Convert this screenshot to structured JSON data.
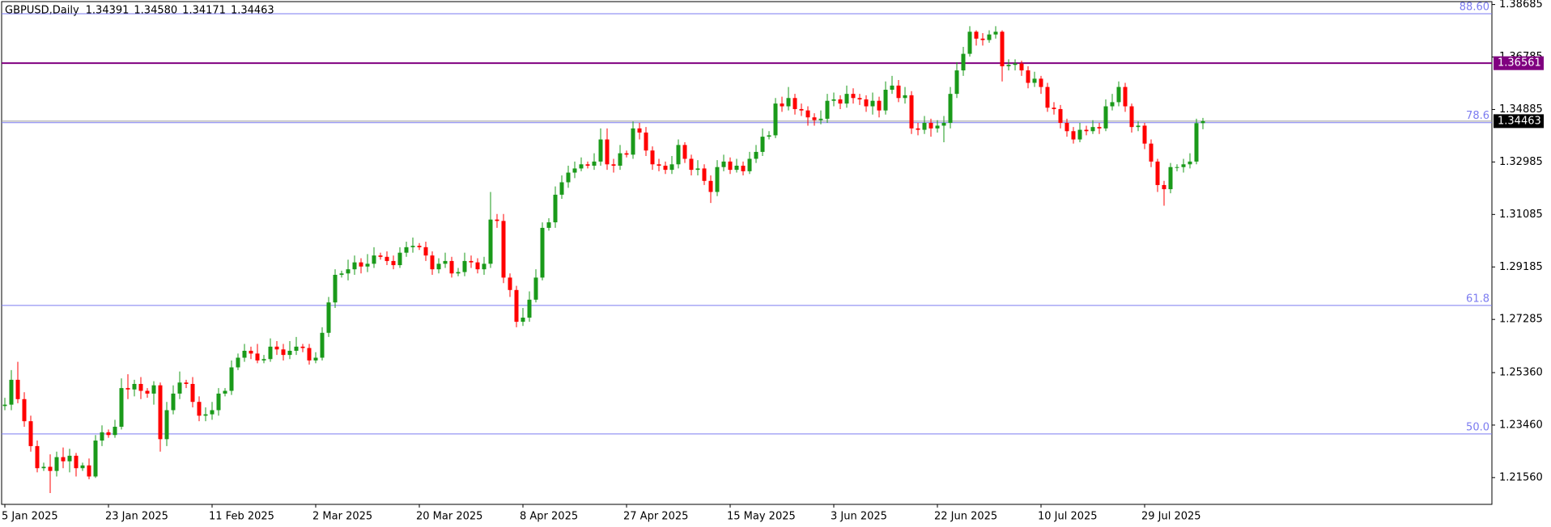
{
  "chart_data": {
    "type": "candlestick",
    "title": "GBPUSD,Daily",
    "header_values": [
      "1.34391",
      "1.34580",
      "1.34171",
      "1.34463"
    ],
    "up_color": "#1a9a1a",
    "down_color": "#ff0000",
    "ylim": [
      1.2059,
      1.3879
    ],
    "yticks": [
      1.38685,
      1.36785,
      1.34885,
      1.32985,
      1.31085,
      1.29185,
      1.27285,
      {
        "value": 1.2536,
        "label": "1.25360"
      },
      {
        "value": 1.2346,
        "label": "1.23460"
      },
      {
        "value": 1.2156,
        "label": "1.21560"
      }
    ],
    "levels": [
      {
        "label": "88.60",
        "value": 1.3835
      },
      {
        "label": "78.6",
        "value": 1.3441
      },
      {
        "label": "61.8",
        "value": 1.2779
      },
      {
        "label": "50.0",
        "value": 1.2314
      }
    ],
    "level_color": "#7b7bf0",
    "price_lines": [
      {
        "value": 1.36561,
        "label": "1.36561",
        "color": "#800080"
      },
      {
        "value": 1.34463,
        "label": "1.34463",
        "color": "#000000"
      }
    ],
    "categories": [
      "5 Jan 2025",
      null,
      null,
      null,
      null,
      null,
      null,
      null,
      null,
      null,
      null,
      null,
      null,
      null,
      null,
      null,
      "23 Jan 2025",
      null,
      null,
      null,
      null,
      null,
      null,
      null,
      null,
      null,
      null,
      null,
      null,
      null,
      null,
      null,
      "11 Feb 2025",
      null,
      null,
      null,
      null,
      null,
      null,
      null,
      null,
      null,
      null,
      null,
      null,
      null,
      null,
      null,
      "2 Mar 2025",
      null,
      null,
      null,
      null,
      null,
      null,
      null,
      null,
      null,
      null,
      null,
      null,
      null,
      null,
      null,
      "20 Mar 2025",
      null,
      null,
      null,
      null,
      null,
      null,
      null,
      null,
      null,
      null,
      null,
      null,
      null,
      null,
      null,
      "8 Apr 2025",
      null,
      null,
      null,
      null,
      null,
      null,
      null,
      null,
      null,
      null,
      null,
      null,
      null,
      null,
      null,
      "27 Apr 2025",
      null,
      null,
      null,
      null,
      null,
      null,
      null,
      null,
      null,
      null,
      null,
      null,
      null,
      null,
      null,
      "15 May 2025",
      null,
      null,
      null,
      null,
      null,
      null,
      null,
      null,
      null,
      null,
      null,
      null,
      null,
      null,
      null,
      "3 Jun 2025",
      null,
      null,
      null,
      null,
      null,
      null,
      null,
      null,
      null,
      null,
      null,
      null,
      null,
      null,
      null,
      "22 Jun 2025",
      null,
      null,
      null,
      null,
      null,
      null,
      null,
      null,
      null,
      null,
      null,
      null,
      null,
      null,
      null,
      "10 Jul 2025",
      null,
      null,
      null,
      null,
      null,
      null,
      null,
      null,
      null,
      null,
      null,
      null,
      null,
      null,
      null,
      "29 Jul 2025",
      null,
      null,
      null,
      null,
      null,
      null,
      null,
      null,
      null
    ],
    "candles": [
      [
        1.2415,
        1.2445,
        1.24,
        1.242
      ],
      [
        1.242,
        1.2545,
        1.24,
        1.251
      ],
      [
        1.251,
        1.2575,
        1.2425,
        1.244
      ],
      [
        1.244,
        1.2465,
        1.234,
        1.236
      ],
      [
        1.236,
        1.238,
        1.225,
        1.227
      ],
      [
        1.227,
        1.229,
        1.2175,
        1.219
      ],
      [
        1.219,
        1.221,
        1.218,
        1.2195
      ],
      [
        1.2195,
        1.224,
        1.21,
        1.218
      ],
      [
        1.218,
        1.225,
        1.216,
        1.223
      ],
      [
        1.223,
        1.2265,
        1.219,
        1.2215
      ],
      [
        1.2215,
        1.226,
        1.2175,
        1.2235
      ],
      [
        1.2235,
        1.2245,
        1.216,
        1.219
      ],
      [
        1.219,
        1.221,
        1.218,
        1.22
      ],
      [
        1.22,
        1.2225,
        1.215,
        1.216
      ],
      [
        1.216,
        1.231,
        1.2155,
        1.229
      ],
      [
        1.229,
        1.2345,
        1.227,
        1.232
      ],
      [
        1.232,
        1.233,
        1.23,
        1.231
      ],
      [
        1.231,
        1.2365,
        1.23,
        1.234
      ],
      [
        1.234,
        1.2515,
        1.233,
        1.248
      ],
      [
        1.248,
        1.253,
        1.244,
        1.2475
      ],
      [
        1.2475,
        1.251,
        1.245,
        1.2495
      ],
      [
        1.2495,
        1.252,
        1.244,
        1.247
      ],
      [
        1.247,
        1.248,
        1.2445,
        1.246
      ],
      [
        1.246,
        1.2505,
        1.242,
        1.249
      ],
      [
        1.249,
        1.25,
        1.225,
        1.2295
      ],
      [
        1.2295,
        1.243,
        1.227,
        1.24
      ],
      [
        1.24,
        1.249,
        1.2385,
        1.246
      ],
      [
        1.246,
        1.254,
        1.244,
        1.25
      ],
      [
        1.25,
        1.251,
        1.248,
        1.2495
      ],
      [
        1.2495,
        1.252,
        1.241,
        1.243
      ],
      [
        1.243,
        1.245,
        1.236,
        1.238
      ],
      [
        1.238,
        1.241,
        1.236,
        1.2385
      ],
      [
        1.2385,
        1.243,
        1.2365,
        1.24
      ],
      [
        1.24,
        1.248,
        1.238,
        1.246
      ],
      [
        1.246,
        1.248,
        1.245,
        1.247
      ],
      [
        1.247,
        1.258,
        1.2455,
        1.2555
      ],
      [
        1.2555,
        1.2605,
        1.2545,
        1.259
      ],
      [
        1.259,
        1.264,
        1.2575,
        1.2615
      ],
      [
        1.2615,
        1.263,
        1.2585,
        1.2605
      ],
      [
        1.2605,
        1.264,
        1.257,
        1.258
      ],
      [
        1.258,
        1.26,
        1.257,
        1.2585
      ],
      [
        1.2585,
        1.266,
        1.2575,
        1.263
      ],
      [
        1.263,
        1.265,
        1.26,
        1.262
      ],
      [
        1.262,
        1.264,
        1.258,
        1.26
      ],
      [
        1.26,
        1.265,
        1.2585,
        1.2615
      ],
      [
        1.2615,
        1.2665,
        1.26,
        1.263
      ],
      [
        1.263,
        1.264,
        1.261,
        1.2625
      ],
      [
        1.2625,
        1.264,
        1.2565,
        1.258
      ],
      [
        1.258,
        1.261,
        1.257,
        1.259
      ],
      [
        1.259,
        1.27,
        1.258,
        1.268
      ],
      [
        1.268,
        1.281,
        1.2665,
        1.279
      ],
      [
        1.279,
        1.291,
        1.277,
        1.289
      ],
      [
        1.289,
        1.2905,
        1.288,
        1.2895
      ],
      [
        1.2895,
        1.2945,
        1.287,
        1.291
      ],
      [
        1.291,
        1.296,
        1.289,
        1.2935
      ],
      [
        1.2935,
        1.295,
        1.2895,
        1.292
      ],
      [
        1.292,
        1.2965,
        1.29,
        1.293
      ],
      [
        1.293,
        1.299,
        1.2915,
        1.296
      ],
      [
        1.296,
        1.297,
        1.2945,
        1.2955
      ],
      [
        1.2955,
        1.2975,
        1.2925,
        1.294
      ],
      [
        1.294,
        1.296,
        1.291,
        1.2925
      ],
      [
        1.2925,
        1.299,
        1.2915,
        1.297
      ],
      [
        1.297,
        1.301,
        1.2955,
        1.299
      ],
      [
        1.299,
        1.3025,
        1.297,
        1.2995
      ],
      [
        1.2995,
        1.3005,
        1.298,
        1.299
      ],
      [
        1.299,
        1.301,
        1.294,
        1.296
      ],
      [
        1.296,
        1.2975,
        1.289,
        1.291
      ],
      [
        1.291,
        1.295,
        1.2895,
        1.293
      ],
      [
        1.293,
        1.297,
        1.2915,
        1.294
      ],
      [
        1.294,
        1.2955,
        1.288,
        1.2895
      ],
      [
        1.2895,
        1.2915,
        1.2885,
        1.29
      ],
      [
        1.29,
        1.297,
        1.2885,
        1.294
      ],
      [
        1.294,
        1.296,
        1.2915,
        1.2935
      ],
      [
        1.2935,
        1.295,
        1.2895,
        1.291
      ],
      [
        1.291,
        1.2955,
        1.289,
        1.293
      ],
      [
        1.293,
        1.319,
        1.2915,
        1.309
      ],
      [
        1.309,
        1.311,
        1.306,
        1.3085
      ],
      [
        1.3085,
        1.311,
        1.286,
        1.288
      ],
      [
        1.288,
        1.2895,
        1.281,
        1.2835
      ],
      [
        1.2835,
        1.285,
        1.27,
        1.272
      ],
      [
        1.272,
        1.277,
        1.2705,
        1.2735
      ],
      [
        1.2735,
        1.283,
        1.272,
        1.28
      ],
      [
        1.28,
        1.291,
        1.279,
        1.288
      ],
      [
        1.288,
        1.308,
        1.287,
        1.306
      ],
      [
        1.306,
        1.3095,
        1.305,
        1.308
      ],
      [
        1.308,
        1.321,
        1.306,
        1.318
      ],
      [
        1.318,
        1.325,
        1.3165,
        1.3225
      ],
      [
        1.3225,
        1.3285,
        1.3205,
        1.326
      ],
      [
        1.326,
        1.33,
        1.324,
        1.3275
      ],
      [
        1.3275,
        1.3315,
        1.3265,
        1.329
      ],
      [
        1.329,
        1.33,
        1.3275,
        1.3285
      ],
      [
        1.3285,
        1.333,
        1.327,
        1.33
      ],
      [
        1.33,
        1.342,
        1.3285,
        1.338
      ],
      [
        1.338,
        1.342,
        1.327,
        1.329
      ],
      [
        1.329,
        1.331,
        1.326,
        1.3285
      ],
      [
        1.3285,
        1.336,
        1.327,
        1.333
      ],
      [
        1.333,
        1.334,
        1.3315,
        1.3325
      ],
      [
        1.3325,
        1.3445,
        1.331,
        1.342
      ],
      [
        1.342,
        1.344,
        1.338,
        1.3405
      ],
      [
        1.3405,
        1.3425,
        1.332,
        1.334
      ],
      [
        1.334,
        1.3355,
        1.327,
        1.329
      ],
      [
        1.329,
        1.331,
        1.3265,
        1.3285
      ],
      [
        1.3285,
        1.33,
        1.3255,
        1.327
      ],
      [
        1.327,
        1.332,
        1.3255,
        1.329
      ],
      [
        1.329,
        1.338,
        1.3275,
        1.336
      ],
      [
        1.336,
        1.337,
        1.3295,
        1.331
      ],
      [
        1.331,
        1.3325,
        1.325,
        1.327
      ],
      [
        1.327,
        1.3305,
        1.325,
        1.3275
      ],
      [
        1.3275,
        1.329,
        1.3215,
        1.323
      ],
      [
        1.323,
        1.325,
        1.315,
        1.319
      ],
      [
        1.319,
        1.3305,
        1.3175,
        1.328
      ],
      [
        1.328,
        1.3325,
        1.3265,
        1.33
      ],
      [
        1.33,
        1.3315,
        1.3255,
        1.327
      ],
      [
        1.327,
        1.331,
        1.326,
        1.3285
      ],
      [
        1.3285,
        1.33,
        1.325,
        1.3265
      ],
      [
        1.3265,
        1.3335,
        1.3255,
        1.331
      ],
      [
        1.331,
        1.336,
        1.3295,
        1.3335
      ],
      [
        1.3335,
        1.342,
        1.332,
        1.339
      ],
      [
        1.339,
        1.341,
        1.338,
        1.3395
      ],
      [
        1.3395,
        1.353,
        1.3385,
        1.351
      ],
      [
        1.351,
        1.3535,
        1.348,
        1.35
      ],
      [
        1.35,
        1.357,
        1.3485,
        1.353
      ],
      [
        1.353,
        1.3545,
        1.347,
        1.349
      ],
      [
        1.349,
        1.351,
        1.3465,
        1.3485
      ],
      [
        1.3485,
        1.35,
        1.343,
        1.346
      ],
      [
        1.346,
        1.3475,
        1.343,
        1.345
      ],
      [
        1.345,
        1.3485,
        1.3435,
        1.3455
      ],
      [
        1.3455,
        1.3545,
        1.344,
        1.352
      ],
      [
        1.352,
        1.355,
        1.35,
        1.3525
      ],
      [
        1.3525,
        1.354,
        1.349,
        1.351
      ],
      [
        1.351,
        1.3575,
        1.3495,
        1.3545
      ],
      [
        1.3545,
        1.3565,
        1.351,
        1.353
      ],
      [
        1.353,
        1.3545,
        1.3505,
        1.3525
      ],
      [
        1.3525,
        1.354,
        1.348,
        1.35
      ],
      [
        1.35,
        1.355,
        1.347,
        1.352
      ],
      [
        1.352,
        1.3535,
        1.346,
        1.3485
      ],
      [
        1.3485,
        1.359,
        1.347,
        1.356
      ],
      [
        1.356,
        1.361,
        1.3545,
        1.3575
      ],
      [
        1.3575,
        1.3595,
        1.3515,
        1.353
      ],
      [
        1.353,
        1.357,
        1.351,
        1.354
      ],
      [
        1.354,
        1.3555,
        1.34,
        1.342
      ],
      [
        1.342,
        1.344,
        1.3395,
        1.3415
      ],
      [
        1.3415,
        1.3465,
        1.34,
        1.344
      ],
      [
        1.344,
        1.3455,
        1.339,
        1.342
      ],
      [
        1.342,
        1.345,
        1.3405,
        1.343
      ],
      [
        1.343,
        1.3465,
        1.337,
        1.344
      ],
      [
        1.344,
        1.357,
        1.342,
        1.3545
      ],
      [
        1.3545,
        1.366,
        1.353,
        1.363
      ],
      [
        1.363,
        1.3715,
        1.361,
        1.369
      ],
      [
        1.369,
        1.379,
        1.368,
        1.377
      ],
      [
        1.377,
        1.3775,
        1.372,
        1.3745
      ],
      [
        1.3745,
        1.3765,
        1.372,
        1.374
      ],
      [
        1.374,
        1.3775,
        1.373,
        1.376
      ],
      [
        1.376,
        1.379,
        1.3745,
        1.377
      ],
      [
        1.377,
        1.3775,
        1.359,
        1.3645
      ],
      [
        1.3645,
        1.367,
        1.363,
        1.365
      ],
      [
        1.365,
        1.367,
        1.363,
        1.3655
      ],
      [
        1.3655,
        1.3665,
        1.361,
        1.363
      ],
      [
        1.363,
        1.3645,
        1.3565,
        1.3585
      ],
      [
        1.3585,
        1.3625,
        1.357,
        1.36
      ],
      [
        1.36,
        1.361,
        1.3545,
        1.357
      ],
      [
        1.357,
        1.3585,
        1.348,
        1.3495
      ],
      [
        1.3495,
        1.3515,
        1.347,
        1.349
      ],
      [
        1.349,
        1.3505,
        1.342,
        1.344
      ],
      [
        1.344,
        1.3455,
        1.339,
        1.341
      ],
      [
        1.341,
        1.3425,
        1.3365,
        1.338
      ],
      [
        1.338,
        1.344,
        1.337,
        1.3415
      ],
      [
        1.3415,
        1.343,
        1.3395,
        1.341
      ],
      [
        1.341,
        1.345,
        1.34,
        1.3425
      ],
      [
        1.3425,
        1.344,
        1.34,
        1.342
      ],
      [
        1.342,
        1.3525,
        1.341,
        1.35
      ],
      [
        1.35,
        1.3545,
        1.3485,
        1.3515
      ],
      [
        1.3515,
        1.359,
        1.35,
        1.357
      ],
      [
        1.357,
        1.3585,
        1.348,
        1.35
      ],
      [
        1.35,
        1.351,
        1.3405,
        1.3425
      ],
      [
        1.3425,
        1.3445,
        1.341,
        1.343
      ],
      [
        1.343,
        1.344,
        1.3345,
        1.3365
      ],
      [
        1.3365,
        1.338,
        1.328,
        1.33
      ],
      [
        1.33,
        1.331,
        1.319,
        1.3215
      ],
      [
        1.3215,
        1.323,
        1.314,
        1.32
      ],
      [
        1.32,
        1.3295,
        1.3185,
        1.328
      ],
      [
        1.328,
        1.329,
        1.3265,
        1.328
      ],
      [
        1.328,
        1.331,
        1.326,
        1.329
      ],
      [
        1.329,
        1.333,
        1.3275,
        1.33
      ],
      [
        1.33,
        1.3455,
        1.329,
        1.3439
      ],
      [
        1.34391,
        1.3458,
        1.34171,
        1.34463
      ]
    ]
  }
}
